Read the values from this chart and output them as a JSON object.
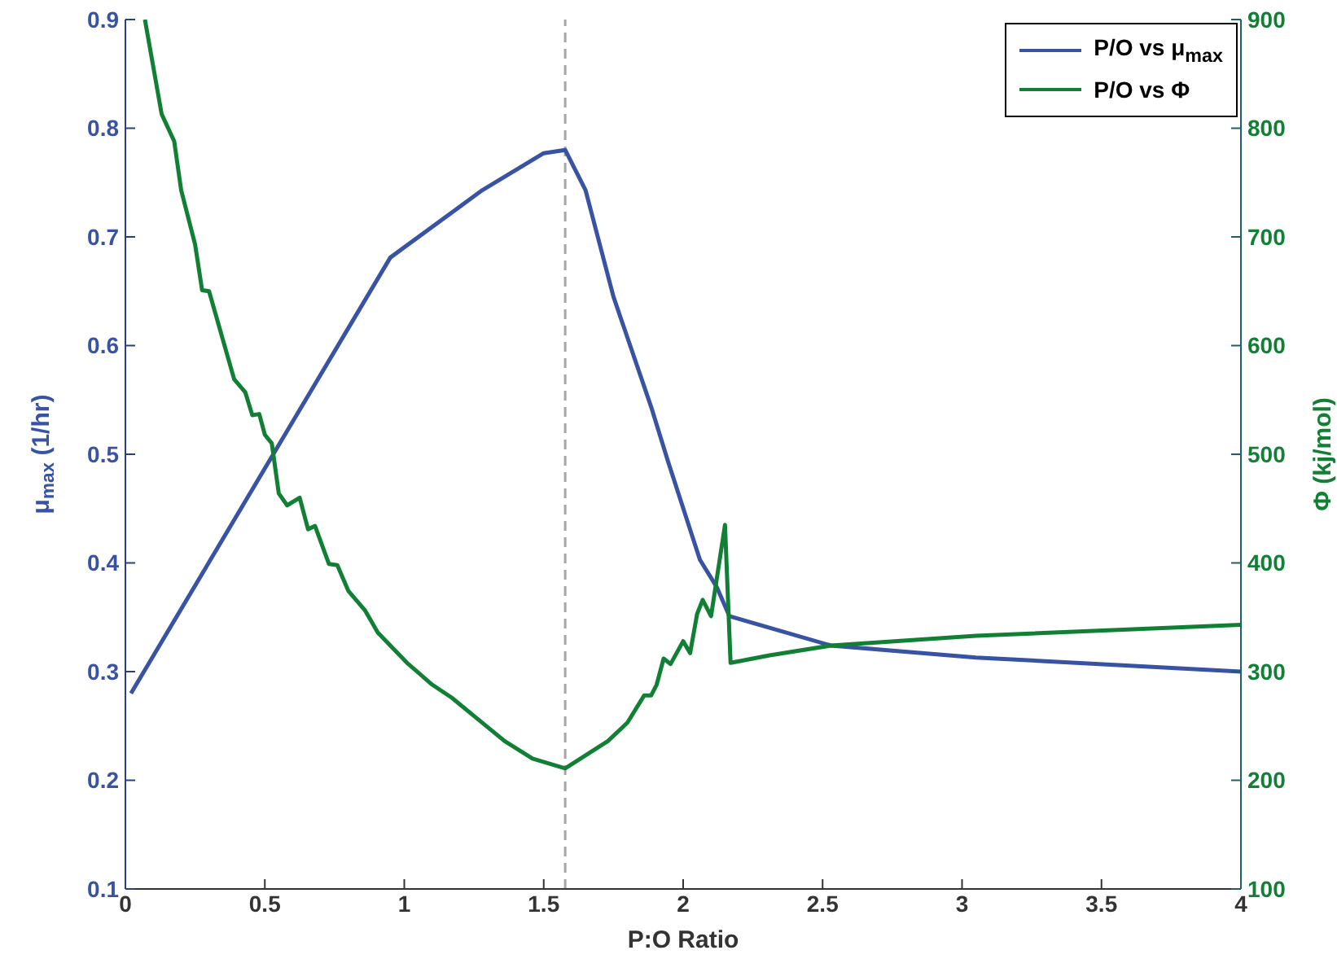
{
  "chart_data": {
    "type": "line",
    "xlabel": "P:O Ratio",
    "ylabel": "μ$_{max}$ (1/hr)",
    "y2label": "Φ (kj/mol)",
    "xlim": [
      0,
      4
    ],
    "xticks": [
      0,
      0.5,
      1,
      1.5,
      2,
      2.5,
      3,
      3.5,
      4
    ],
    "ylim": [
      0.1,
      0.9
    ],
    "yticks": [
      0.1,
      0.2,
      0.3,
      0.4,
      0.5,
      0.6,
      0.7,
      0.8,
      0.9
    ],
    "y2lim": [
      100,
      900
    ],
    "y2ticks": [
      100,
      200,
      300,
      400,
      500,
      600,
      700,
      800,
      900
    ],
    "legend": "top right",
    "grid": false,
    "marker": "none",
    "line_style": "solid",
    "ref_lines": [
      {
        "axis": "x",
        "value": 1.577,
        "color": "#a6a6a6",
        "line_style": "dashed"
      }
    ],
    "series": [
      {
        "name": "P/O vs μ$_{max}$",
        "color": "#3852a4",
        "x": [
          0.02,
          0.95,
          1.28,
          1.5,
          1.577,
          1.65,
          1.75,
          1.886,
          1.945,
          2.06,
          2.12,
          2.166,
          2.53,
          3.05,
          4.0
        ],
        "values": [
          0.28,
          0.681,
          0.743,
          0.777,
          0.78,
          0.743,
          0.645,
          0.543,
          0.494,
          0.403,
          0.378,
          0.351,
          0.324,
          0.313,
          0.3
        ]
      },
      {
        "name": "P/O vs Φ",
        "color": "#118035",
        "axis": "y2",
        "x": [
          0.07,
          0.13,
          0.175,
          0.2,
          0.25,
          0.275,
          0.3,
          0.39,
          0.43,
          0.455,
          0.48,
          0.5,
          0.525,
          0.55,
          0.58,
          0.625,
          0.655,
          0.68,
          0.73,
          0.76,
          0.8,
          0.86,
          0.905,
          1.01,
          1.1,
          1.17,
          1.27,
          1.36,
          1.46,
          1.577,
          1.73,
          1.8,
          1.86,
          1.885,
          1.905,
          1.93,
          1.955,
          2.0,
          2.025,
          2.05,
          2.07,
          2.1,
          2.15,
          2.17,
          2.31,
          2.53,
          3.05,
          4.0
        ],
        "values": [
          900,
          813,
          788,
          743,
          693,
          651,
          650,
          569,
          557,
          536,
          537,
          518,
          510,
          464,
          453,
          460,
          431,
          434,
          399,
          398,
          374,
          356,
          336,
          308,
          288,
          276,
          255,
          236,
          220,
          211,
          236,
          253,
          278,
          278,
          288,
          312,
          307,
          328,
          317,
          353,
          366,
          351,
          435,
          308,
          315,
          324,
          333,
          343
        ]
      }
    ]
  }
}
